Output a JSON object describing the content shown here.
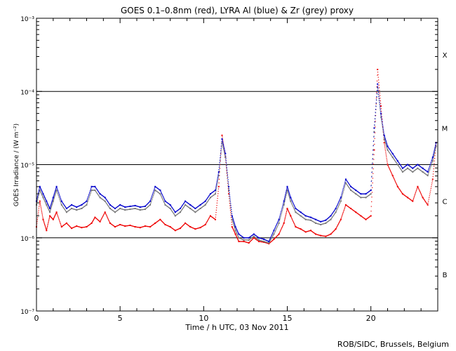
{
  "chart_data": {
    "type": "scatter",
    "title": "GOES 0.1–0.8nm (red), LYRA Al (blue) & Zr (grey) proxy",
    "xlabel": "Time / h UTC, 03 Nov 2011",
    "ylabel": "GOES Irradiance / (W m⁻²)",
    "credit": "ROB/SIDC, Brussels, Belgium",
    "x_range": [
      0,
      24
    ],
    "x_ticks": [
      {
        "v": 0,
        "label": "0"
      },
      {
        "v": 5,
        "label": "5"
      },
      {
        "v": 10,
        "label": "10"
      },
      {
        "v": 15,
        "label": "15"
      },
      {
        "v": 20,
        "label": "20"
      }
    ],
    "y_scale": "log",
    "y_range_exp": [
      -7,
      -3
    ],
    "y_ticks": [
      {
        "exp": -3,
        "label": "10⁻³"
      },
      {
        "exp": -4,
        "label": "10⁻⁴"
      },
      {
        "exp": -5,
        "label": "10⁻⁵"
      },
      {
        "exp": -6,
        "label": "10⁻⁶"
      },
      {
        "exp": -7,
        "label": "10⁻⁷"
      }
    ],
    "flare_classes": [
      {
        "label": "X",
        "exp": -3.5
      },
      {
        "label": "M",
        "exp": -4.5
      },
      {
        "label": "C",
        "exp": -5.5
      },
      {
        "label": "B",
        "exp": -6.5
      }
    ],
    "threshold_lines_exp": [
      -4,
      -5,
      -6
    ],
    "series": [
      {
        "name": "GOES 0.1–0.8nm",
        "color": "#ee0000",
        "note": "log10 of irradiance (W m^-2) vs hours UTC",
        "x": [
          0.0,
          0.2,
          0.4,
          0.6,
          0.8,
          1.0,
          1.2,
          1.5,
          1.8,
          2.1,
          2.4,
          2.7,
          3.0,
          3.3,
          3.5,
          3.8,
          4.1,
          4.4,
          4.7,
          5.0,
          5.3,
          5.6,
          5.9,
          6.2,
          6.5,
          6.8,
          7.1,
          7.4,
          7.7,
          8.0,
          8.3,
          8.6,
          8.9,
          9.2,
          9.5,
          9.8,
          10.1,
          10.4,
          10.7,
          10.9,
          11.1,
          11.3,
          11.5,
          11.7,
          11.9,
          12.1,
          12.4,
          12.7,
          13.0,
          13.3,
          13.6,
          13.9,
          14.2,
          14.5,
          14.8,
          15.0,
          15.2,
          15.5,
          15.8,
          16.1,
          16.4,
          16.7,
          17.0,
          17.3,
          17.6,
          17.9,
          18.2,
          18.5,
          18.8,
          19.1,
          19.4,
          19.7,
          20.0,
          20.2,
          20.4,
          20.6,
          20.8,
          21.0,
          21.3,
          21.6,
          21.9,
          22.2,
          22.5,
          22.8,
          23.1,
          23.4,
          23.7,
          23.9
        ],
        "y": [
          -5.85,
          -5.5,
          -5.75,
          -5.9,
          -5.7,
          -5.75,
          -5.65,
          -5.85,
          -5.8,
          -5.87,
          -5.84,
          -5.86,
          -5.85,
          -5.8,
          -5.72,
          -5.78,
          -5.65,
          -5.8,
          -5.85,
          -5.82,
          -5.84,
          -5.83,
          -5.85,
          -5.86,
          -5.84,
          -5.85,
          -5.8,
          -5.75,
          -5.82,
          -5.85,
          -5.9,
          -5.87,
          -5.8,
          -5.85,
          -5.88,
          -5.86,
          -5.82,
          -5.7,
          -5.75,
          -5.3,
          -4.6,
          -4.9,
          -5.4,
          -5.85,
          -5.95,
          -6.05,
          -6.05,
          -6.07,
          -6.0,
          -6.05,
          -6.06,
          -6.08,
          -6.02,
          -5.95,
          -5.8,
          -5.6,
          -5.7,
          -5.85,
          -5.88,
          -5.92,
          -5.9,
          -5.95,
          -5.97,
          -5.98,
          -5.95,
          -5.88,
          -5.75,
          -5.55,
          -5.6,
          -5.65,
          -5.7,
          -5.75,
          -5.7,
          -4.8,
          -3.7,
          -4.2,
          -4.7,
          -5.0,
          -5.15,
          -5.3,
          -5.4,
          -5.45,
          -5.5,
          -5.3,
          -5.45,
          -5.55,
          -5.2,
          -4.7
        ]
      },
      {
        "name": "LYRA Al",
        "color": "#0000cc",
        "note": "log10 of irradiance (W m^-2) vs hours UTC",
        "x": [
          0.0,
          0.2,
          0.4,
          0.6,
          0.8,
          1.0,
          1.2,
          1.5,
          1.8,
          2.1,
          2.4,
          2.7,
          3.0,
          3.3,
          3.5,
          3.8,
          4.1,
          4.4,
          4.7,
          5.0,
          5.3,
          5.6,
          5.9,
          6.2,
          6.5,
          6.8,
          7.1,
          7.4,
          7.7,
          8.0,
          8.3,
          8.6,
          8.9,
          9.2,
          9.5,
          9.8,
          10.1,
          10.4,
          10.7,
          10.9,
          11.1,
          11.3,
          11.5,
          11.7,
          11.9,
          12.1,
          12.4,
          12.7,
          13.0,
          13.3,
          13.6,
          13.9,
          14.2,
          14.5,
          14.8,
          15.0,
          15.2,
          15.5,
          15.8,
          16.1,
          16.4,
          16.7,
          17.0,
          17.3,
          17.6,
          17.9,
          18.2,
          18.5,
          18.8,
          19.1,
          19.4,
          19.7,
          20.0,
          20.2,
          20.4,
          20.6,
          20.8,
          21.0,
          21.3,
          21.6,
          21.9,
          22.2,
          22.5,
          22.8,
          23.1,
          23.4,
          23.7,
          23.9
        ],
        "y": [
          -5.5,
          -5.3,
          -5.4,
          -5.5,
          -5.6,
          -5.45,
          -5.3,
          -5.5,
          -5.6,
          -5.55,
          -5.58,
          -5.55,
          -5.5,
          -5.3,
          -5.3,
          -5.4,
          -5.45,
          -5.55,
          -5.6,
          -5.55,
          -5.58,
          -5.57,
          -5.56,
          -5.58,
          -5.57,
          -5.5,
          -5.3,
          -5.35,
          -5.5,
          -5.55,
          -5.65,
          -5.6,
          -5.5,
          -5.55,
          -5.6,
          -5.55,
          -5.5,
          -5.4,
          -5.35,
          -5.1,
          -4.65,
          -4.85,
          -5.3,
          -5.7,
          -5.85,
          -5.95,
          -6.0,
          -6.0,
          -5.95,
          -6.0,
          -6.02,
          -6.05,
          -5.9,
          -5.75,
          -5.5,
          -5.3,
          -5.45,
          -5.6,
          -5.65,
          -5.7,
          -5.72,
          -5.75,
          -5.78,
          -5.76,
          -5.7,
          -5.6,
          -5.45,
          -5.2,
          -5.3,
          -5.35,
          -5.4,
          -5.4,
          -5.35,
          -4.5,
          -3.9,
          -4.3,
          -4.6,
          -4.75,
          -4.85,
          -4.95,
          -5.05,
          -5.0,
          -5.05,
          -5.0,
          -5.05,
          -5.1,
          -4.9,
          -4.7
        ]
      },
      {
        "name": "Zr",
        "color": "#777777",
        "note": "log10 of irradiance (W m^-2) vs hours UTC",
        "x": [
          0.0,
          0.2,
          0.4,
          0.6,
          0.8,
          1.0,
          1.2,
          1.5,
          1.8,
          2.1,
          2.4,
          2.7,
          3.0,
          3.3,
          3.5,
          3.8,
          4.1,
          4.4,
          4.7,
          5.0,
          5.3,
          5.6,
          5.9,
          6.2,
          6.5,
          6.8,
          7.1,
          7.4,
          7.7,
          8.0,
          8.3,
          8.6,
          8.9,
          9.2,
          9.5,
          9.8,
          10.1,
          10.4,
          10.7,
          10.9,
          11.1,
          11.3,
          11.5,
          11.7,
          11.9,
          12.1,
          12.4,
          12.7,
          13.0,
          13.3,
          13.6,
          13.9,
          14.2,
          14.5,
          14.8,
          15.0,
          15.2,
          15.5,
          15.8,
          16.1,
          16.4,
          16.7,
          17.0,
          17.3,
          17.6,
          17.9,
          18.2,
          18.5,
          18.8,
          19.1,
          19.4,
          19.7,
          20.0,
          20.2,
          20.4,
          20.6,
          20.8,
          21.0,
          21.3,
          21.6,
          21.9,
          22.2,
          22.5,
          22.8,
          23.1,
          23.4,
          23.7,
          23.9
        ],
        "y": [
          -5.55,
          -5.35,
          -5.45,
          -5.55,
          -5.65,
          -5.5,
          -5.35,
          -5.55,
          -5.65,
          -5.6,
          -5.62,
          -5.6,
          -5.55,
          -5.35,
          -5.35,
          -5.45,
          -5.5,
          -5.6,
          -5.65,
          -5.6,
          -5.62,
          -5.61,
          -5.6,
          -5.62,
          -5.61,
          -5.55,
          -5.35,
          -5.4,
          -5.55,
          -5.6,
          -5.7,
          -5.65,
          -5.55,
          -5.6,
          -5.65,
          -5.6,
          -5.55,
          -5.45,
          -5.4,
          -5.15,
          -4.7,
          -4.9,
          -5.35,
          -5.75,
          -5.9,
          -6.0,
          -6.03,
          -6.03,
          -5.98,
          -6.03,
          -6.05,
          -6.07,
          -5.95,
          -5.8,
          -5.55,
          -5.35,
          -5.5,
          -5.65,
          -5.7,
          -5.75,
          -5.76,
          -5.8,
          -5.82,
          -5.8,
          -5.75,
          -5.65,
          -5.5,
          -5.25,
          -5.35,
          -5.4,
          -5.45,
          -5.45,
          -5.4,
          -4.55,
          -3.95,
          -4.35,
          -4.65,
          -4.8,
          -4.9,
          -5.0,
          -5.1,
          -5.05,
          -5.1,
          -5.05,
          -5.1,
          -5.15,
          -4.95,
          -4.75
        ]
      }
    ]
  }
}
